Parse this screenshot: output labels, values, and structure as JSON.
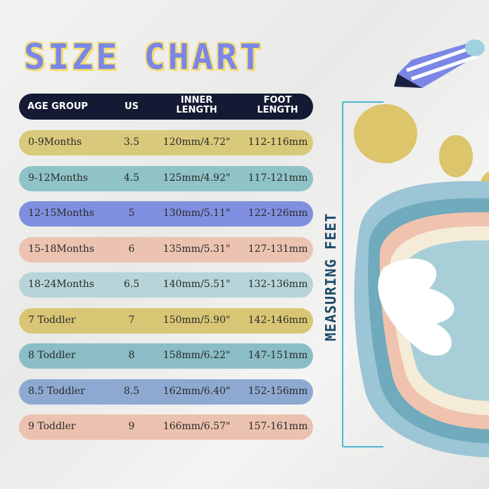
{
  "title": "SIZE CHART",
  "side_label": "MEASURING FEET",
  "columns": [
    "AGE GROUP",
    "US",
    "INNER\nLENGTH",
    "FOOT\nLENGTH"
  ],
  "column_lines": {
    "inner": [
      "INNER",
      "LENGTH"
    ],
    "foot": [
      "FOOT",
      "LENGTH"
    ]
  },
  "rows": [
    {
      "age": "0-9Months",
      "us": "3.5",
      "inner": "120mm/4.72\"",
      "foot": "112-116mm",
      "color": "#d9c97a"
    },
    {
      "age": "9-12Months",
      "us": "4.5",
      "inner": "125mm/4.92\"",
      "foot": "117-121mm",
      "color": "#8fc3c8"
    },
    {
      "age": "12-15Months",
      "us": "5",
      "inner": "130mm/5.11\"",
      "foot": "122-126mm",
      "color": "#8090e0"
    },
    {
      "age": "15-18Months",
      "us": "6",
      "inner": "135mm/5.31\"",
      "foot": "127-131mm",
      "color": "#ecc3b1"
    },
    {
      "age": "18-24Months",
      "us": "6.5",
      "inner": "140mm/5.51\"",
      "foot": "132-136mm",
      "color": "#b7d5d9"
    },
    {
      "age": "7 Toddler",
      "us": "7",
      "inner": "150mm/5.90\"",
      "foot": "142-146mm",
      "color": "#d8c674"
    },
    {
      "age": "8 Toddler",
      "us": "8",
      "inner": "158mm/6.22\"",
      "foot": "147-151mm",
      "color": "#8abdc5"
    },
    {
      "age": "8.5 Toddler",
      "us": "8.5",
      "inner": "162mm/6.40\"",
      "foot": "152-156mm",
      "color": "#8ea9d1"
    },
    {
      "age": "9 Toddler",
      "us": "9",
      "inner": "166mm/6.57\"",
      "foot": "157-161mm",
      "color": "#ebc1af"
    }
  ],
  "colors": {
    "header": "#141a33",
    "title": "#7b86e6",
    "title_outline": "#f2dd74"
  }
}
